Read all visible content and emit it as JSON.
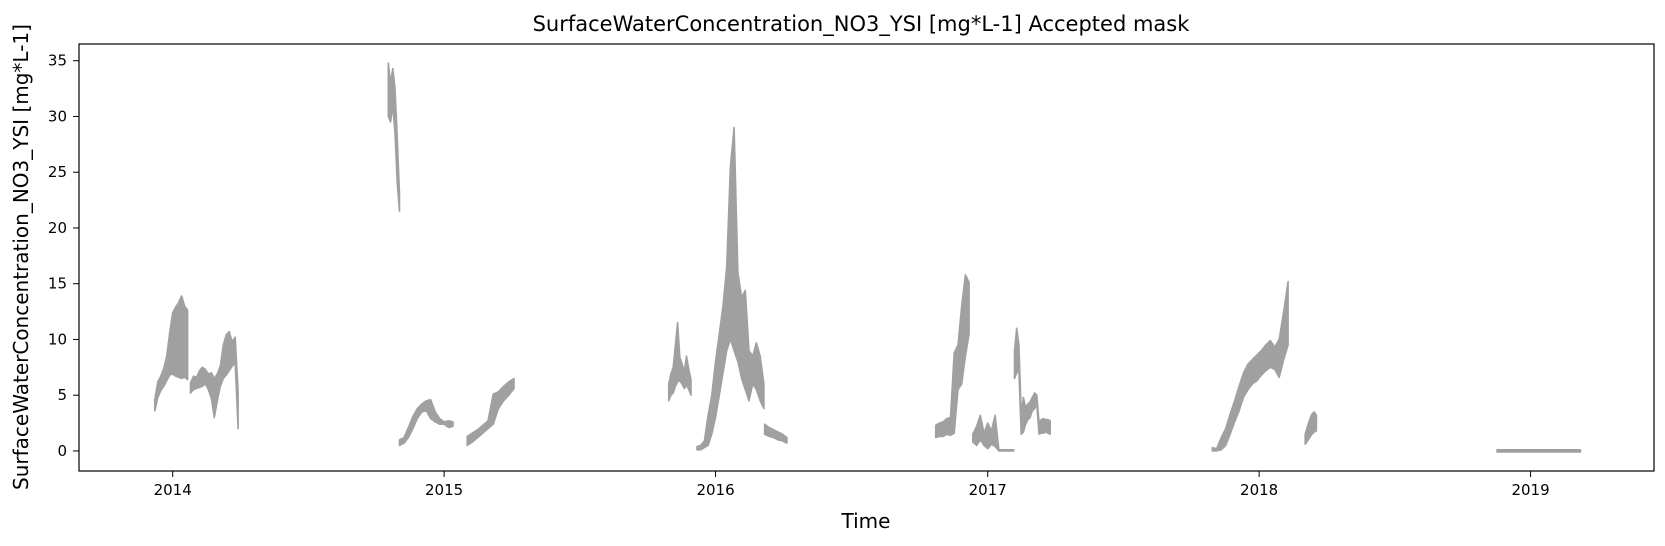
{
  "chart_data": {
    "type": "line",
    "title": "SurfaceWaterConcentration_NO3_YSI [mg*L-1] Accepted mask",
    "xlabel": "Time",
    "ylabel": "SurfaceWaterConcentration_NO3_YSI [mg*L-1]",
    "xlim": [
      "2013-08-28",
      "2019-06-16"
    ],
    "ylim": [
      -1.8,
      36.5
    ],
    "x_ticks": [
      "2014",
      "2015",
      "2016",
      "2017",
      "2018",
      "2019"
    ],
    "y_ticks": [
      0,
      5,
      10,
      15,
      20,
      25,
      30,
      35
    ],
    "grid": false,
    "legend": "none",
    "series_color": "#a0a0a0",
    "series": [
      {
        "x": [
          "2013-12-08",
          "2013-12-12",
          "2013-12-16",
          "2013-12-20",
          "2013-12-24",
          "2013-12-28",
          "2014-01-01",
          "2014-01-05",
          "2014-01-09",
          "2014-01-13",
          "2014-01-17",
          "2014-01-21"
        ],
        "low": [
          3.6,
          4.8,
          5.4,
          5.8,
          6.3,
          6.8,
          6.9,
          6.7,
          6.6,
          6.5,
          6.6,
          6.4
        ],
        "high": [
          4.6,
          6.2,
          6.7,
          7.4,
          8.5,
          10.6,
          12.4,
          12.9,
          13.3,
          13.9,
          13.0,
          12.6
        ]
      },
      {
        "x": [
          "2014-01-25",
          "2014-01-29",
          "2014-02-02",
          "2014-02-06",
          "2014-02-10",
          "2014-02-14",
          "2014-02-18",
          "2014-02-22",
          "2014-02-26",
          "2014-03-02",
          "2014-03-06",
          "2014-03-10",
          "2014-03-14",
          "2014-03-18",
          "2014-03-22",
          "2014-03-26",
          "2014-03-30"
        ],
        "low": [
          5.2,
          5.5,
          5.6,
          5.7,
          5.8,
          6.0,
          5.5,
          4.7,
          3.0,
          4.5,
          5.8,
          6.5,
          6.8,
          7.2,
          7.6,
          7.9,
          2.0
        ],
        "high": [
          6.1,
          6.7,
          6.6,
          7.2,
          7.5,
          7.3,
          6.9,
          7.0,
          6.5,
          6.9,
          7.6,
          9.5,
          10.4,
          10.7,
          9.8,
          10.2,
          5.3
        ]
      },
      {
        "x": [
          "2014-10-18",
          "2014-10-21",
          "2014-10-24",
          "2014-10-27",
          "2014-10-30",
          "2014-11-02"
        ],
        "low": [
          30.0,
          29.5,
          31.0,
          28.5,
          24.0,
          21.5
        ],
        "high": [
          34.8,
          33.0,
          34.3,
          32.5,
          28.0,
          23.0
        ]
      },
      {
        "x": [
          "2014-11-02",
          "2014-11-08",
          "2014-11-14",
          "2014-11-20",
          "2014-11-26",
          "2014-12-02",
          "2014-12-08",
          "2014-12-14",
          "2014-12-20",
          "2014-12-26",
          "2015-01-01",
          "2015-01-07",
          "2015-01-13"
        ],
        "low": [
          0.5,
          0.7,
          1.2,
          2.0,
          2.9,
          3.5,
          3.6,
          2.9,
          2.6,
          2.4,
          2.4,
          2.1,
          2.2
        ],
        "high": [
          1.0,
          1.2,
          2.1,
          3.1,
          3.8,
          4.2,
          4.5,
          4.6,
          3.5,
          2.9,
          2.6,
          2.7,
          2.6
        ]
      },
      {
        "x": [
          "2015-02-01",
          "2015-02-08",
          "2015-02-15",
          "2015-02-22",
          "2015-03-01",
          "2015-03-08",
          "2015-03-15",
          "2015-03-22",
          "2015-03-29",
          "2015-04-05"
        ],
        "low": [
          0.5,
          0.8,
          1.2,
          1.6,
          2.0,
          2.4,
          3.8,
          4.5,
          5.0,
          5.6
        ],
        "high": [
          1.3,
          1.6,
          1.9,
          2.3,
          2.7,
          5.1,
          5.3,
          5.8,
          6.2,
          6.5
        ]
      },
      {
        "x": [
          "2015-10-30",
          "2015-11-02",
          "2015-11-05",
          "2015-11-08",
          "2015-11-11",
          "2015-11-14",
          "2015-11-17",
          "2015-11-20",
          "2015-11-23",
          "2015-11-26",
          "2015-11-29"
        ],
        "low": [
          4.5,
          5.0,
          5.2,
          5.8,
          6.2,
          6.3,
          6.0,
          5.6,
          5.9,
          5.5,
          5.0
        ],
        "high": [
          6.0,
          6.9,
          7.5,
          9.5,
          11.5,
          8.4,
          7.8,
          7.1,
          8.5,
          7.3,
          6.4
        ]
      },
      {
        "x": [
          "2015-12-07",
          "2015-12-12",
          "2015-12-17",
          "2015-12-22",
          "2015-12-27",
          "2016-01-01",
          "2016-01-06",
          "2016-01-11",
          "2016-01-16",
          "2016-01-21",
          "2016-01-26",
          "2016-01-31",
          "2016-02-05",
          "2016-02-10",
          "2016-02-15",
          "2016-02-20",
          "2016-02-25",
          "2016-03-01",
          "2016-03-06"
        ],
        "low": [
          0.1,
          0.1,
          0.3,
          0.5,
          1.5,
          3.0,
          5.0,
          7.0,
          9.0,
          10.0,
          9.0,
          8.0,
          6.5,
          5.5,
          4.5,
          6.0,
          5.5,
          4.5,
          3.8
        ],
        "high": [
          0.4,
          0.5,
          0.9,
          3.2,
          5.0,
          8.0,
          10.5,
          13.0,
          16.5,
          25.5,
          29.0,
          16.0,
          13.8,
          14.4,
          9.0,
          8.5,
          9.7,
          8.5,
          6.0
        ]
      },
      {
        "x": [
          "2016-03-07",
          "2016-03-13",
          "2016-03-19",
          "2016-03-25",
          "2016-03-31",
          "2016-04-06"
        ],
        "low": [
          1.5,
          1.3,
          1.2,
          1.0,
          0.9,
          0.7
        ],
        "high": [
          2.4,
          2.1,
          1.9,
          1.7,
          1.5,
          1.2
        ]
      },
      {
        "x": [
          "2016-10-23",
          "2016-10-28",
          "2016-11-02",
          "2016-11-07",
          "2016-11-12",
          "2016-11-17",
          "2016-11-22",
          "2016-11-27",
          "2016-12-02",
          "2016-12-07"
        ],
        "low": [
          1.2,
          1.3,
          1.3,
          1.5,
          1.4,
          1.6,
          5.5,
          6.0,
          8.5,
          10.5
        ],
        "high": [
          2.3,
          2.5,
          2.6,
          2.9,
          3.0,
          8.8,
          9.5,
          13.0,
          15.8,
          15.1
        ]
      },
      {
        "x": [
          "2016-12-12",
          "2016-12-17",
          "2016-12-22",
          "2016-12-27",
          "2017-01-01",
          "2017-01-06",
          "2017-01-11",
          "2017-01-16",
          "2017-01-21",
          "2017-01-26",
          "2017-01-31",
          "2017-02-05"
        ],
        "low": [
          0.8,
          0.5,
          1.0,
          0.5,
          0.2,
          0.6,
          0.4,
          0.0,
          0.0,
          0.0,
          0.0,
          0.0
        ],
        "high": [
          1.5,
          2.2,
          3.2,
          1.6,
          2.5,
          1.8,
          3.2,
          0.1,
          0.1,
          0.1,
          0.1,
          0.1
        ]
      },
      {
        "x": [
          "2017-02-06",
          "2017-02-09",
          "2017-02-12",
          "2017-02-15",
          "2017-02-18",
          "2017-02-21",
          "2017-02-24",
          "2017-02-27",
          "2017-03-02",
          "2017-03-05",
          "2017-03-08",
          "2017-03-11",
          "2017-03-14",
          "2017-03-17",
          "2017-03-20",
          "2017-03-23",
          "2017-03-26"
        ],
        "low": [
          6.5,
          7.0,
          7.2,
          1.5,
          1.7,
          2.4,
          2.8,
          3.0,
          3.6,
          3.8,
          4.2,
          1.5,
          1.6,
          1.6,
          1.7,
          1.6,
          1.5
        ],
        "high": [
          9.0,
          11.0,
          9.5,
          3.3,
          4.8,
          3.9,
          4.2,
          4.4,
          4.8,
          5.2,
          5.0,
          2.6,
          2.8,
          2.9,
          2.8,
          2.8,
          2.7
        ]
      },
      {
        "x": [
          "2017-10-30",
          "2017-11-05",
          "2017-11-11",
          "2017-11-17",
          "2017-11-23",
          "2017-11-29",
          "2017-12-05",
          "2017-12-11",
          "2017-12-17",
          "2017-12-23",
          "2017-12-29",
          "2018-01-04",
          "2018-01-10",
          "2018-01-16",
          "2018-01-22",
          "2018-01-28",
          "2018-02-03",
          "2018-02-09"
        ],
        "low": [
          0.0,
          0.0,
          0.1,
          0.5,
          1.5,
          2.6,
          3.6,
          4.8,
          5.5,
          6.0,
          6.3,
          6.8,
          7.2,
          7.5,
          7.3,
          6.6,
          8.2,
          9.5
        ],
        "high": [
          0.3,
          0.2,
          1.2,
          2.0,
          3.3,
          4.5,
          5.8,
          7.0,
          7.8,
          8.2,
          8.6,
          9.0,
          9.5,
          9.9,
          9.3,
          10.0,
          12.5,
          15.2
        ]
      },
      {
        "x": [
          "2018-03-04",
          "2018-03-07",
          "2018-03-10",
          "2018-03-13",
          "2018-03-16",
          "2018-03-19"
        ],
        "low": [
          0.6,
          0.9,
          1.2,
          1.5,
          1.7,
          1.8
        ],
        "high": [
          1.5,
          2.2,
          2.8,
          3.3,
          3.5,
          3.2
        ]
      },
      {
        "x": [
          "2018-11-17",
          "2018-11-21",
          "2018-11-25",
          "2018-11-29",
          "2018-12-07",
          "2018-12-11",
          "2018-12-15",
          "2018-12-19",
          "2019-01-02",
          "2019-01-08",
          "2019-01-14",
          "2019-01-20",
          "2019-01-26",
          "2019-02-01",
          "2019-02-07",
          "2019-03-05",
          "2019-03-07",
          "2019-03-09"
        ],
        "low": [
          -0.1,
          -0.1,
          -0.1,
          -0.1,
          -0.1,
          -0.1,
          -0.1,
          -0.1,
          -0.1,
          -0.1,
          -0.1,
          -0.1,
          -0.1,
          -0.1,
          -0.1,
          -0.1,
          -0.1,
          -0.1
        ],
        "high": [
          0.1,
          0.1,
          0.1,
          0.1,
          0.1,
          0.1,
          0.1,
          0.1,
          0.1,
          0.1,
          0.1,
          0.1,
          0.1,
          0.1,
          0.1,
          0.1,
          0.1,
          0.1
        ]
      }
    ]
  }
}
